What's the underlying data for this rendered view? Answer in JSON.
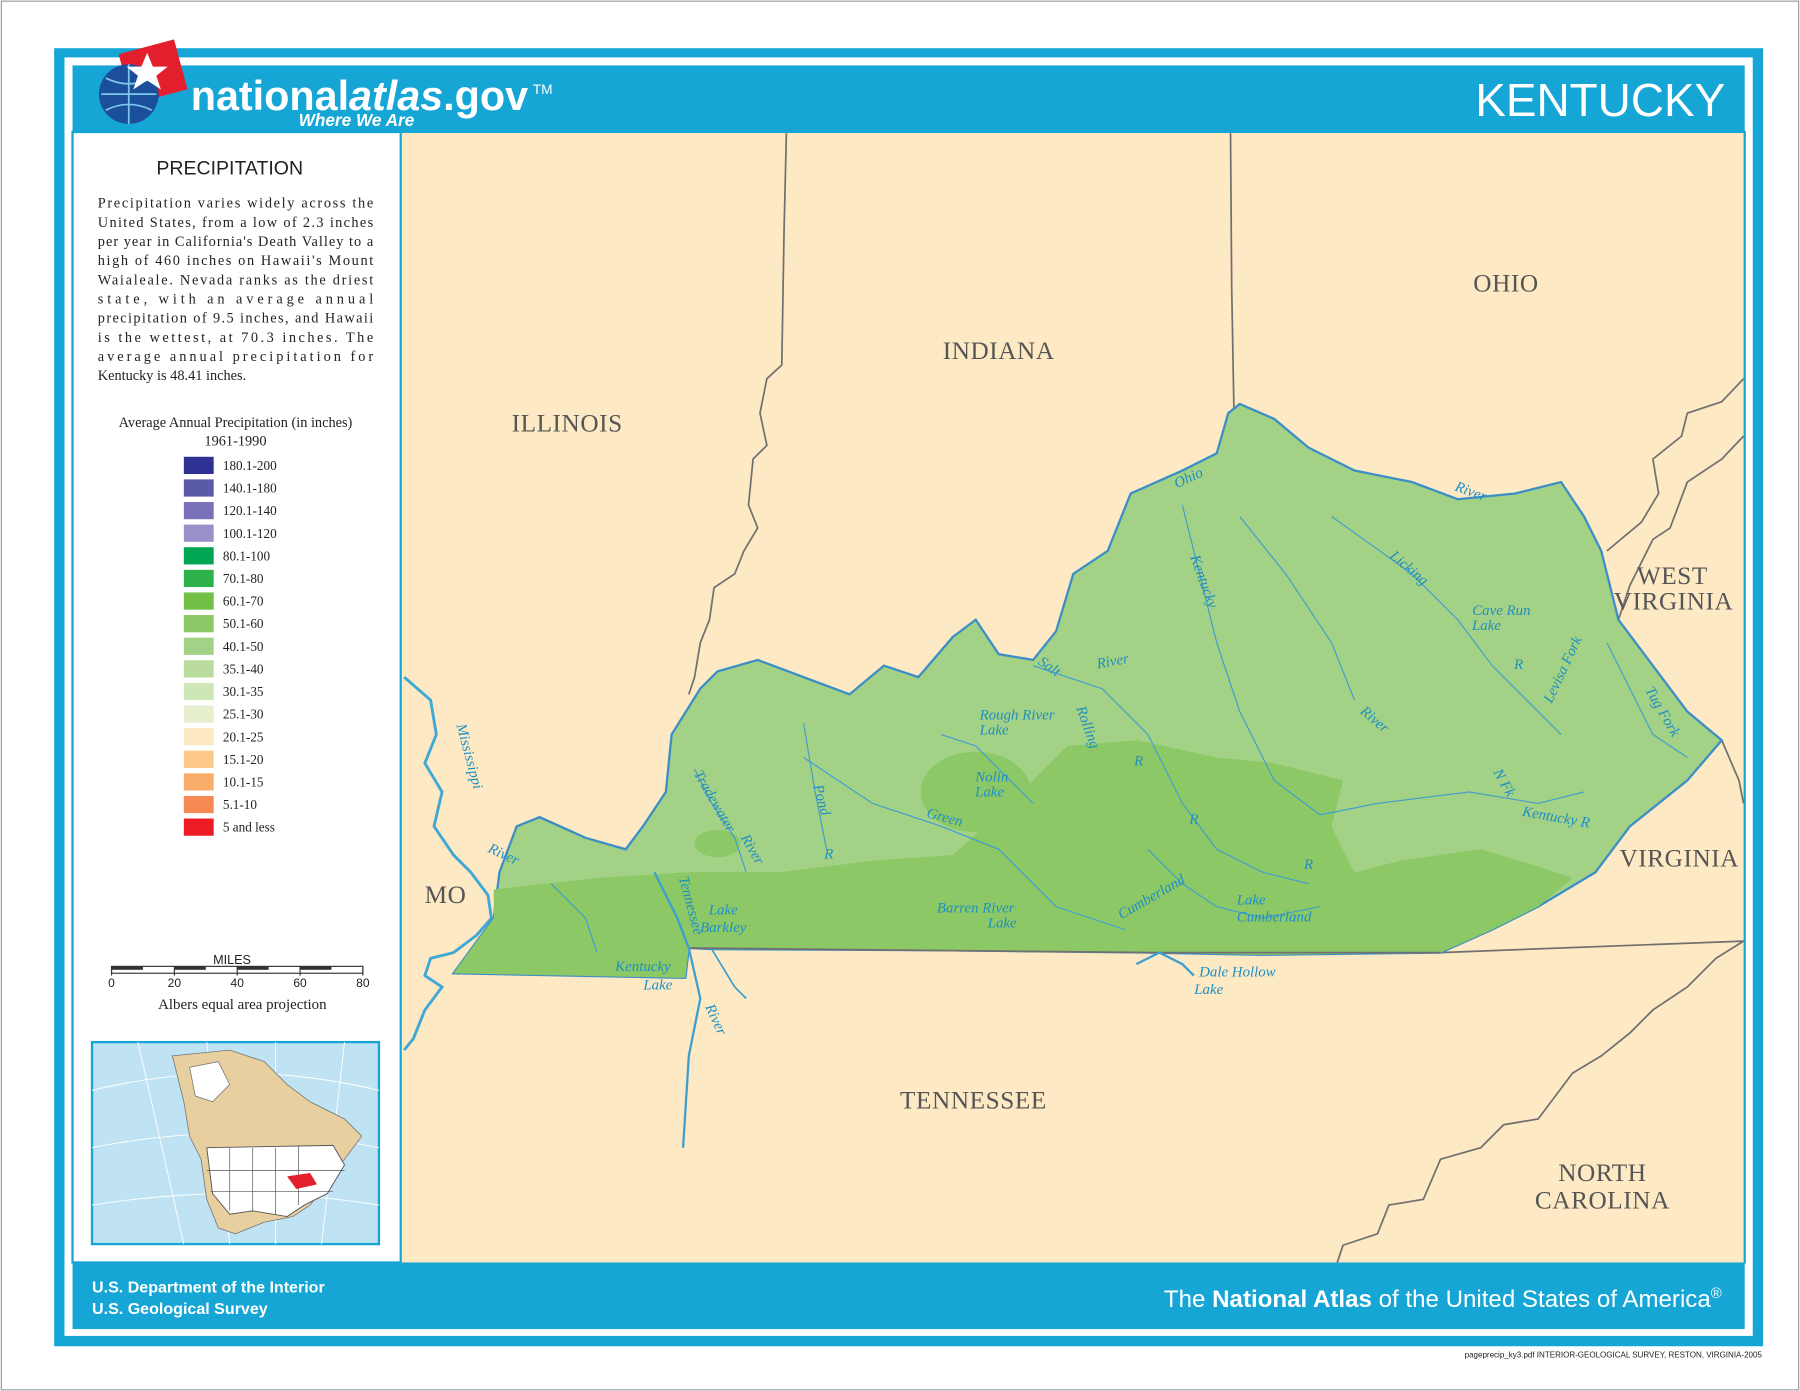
{
  "header": {
    "logo": {
      "part1": "national",
      "part2": "atlas",
      "part3": ".gov",
      "trademark": "TM",
      "tagline": "Where We Are"
    },
    "title": "KENTUCKY"
  },
  "panel": {
    "heading": "PRECIPITATION",
    "paragraph_lines": [
      "Precipitation varies widely across the",
      "United States, from a low of 2.3 inches",
      "per year in California's Death Valley to a",
      "high of 460 inches on Hawaii's Mount",
      "Waialeale. Nevada ranks as the driest",
      "state, with an average annual",
      "precipitation of 9.5 inches, and Hawaii",
      "is the wettest, at 70.3 inches. The",
      "average annual precipitation for",
      "Kentucky is 48.41 inches."
    ],
    "legend": {
      "title": "Average Annual Precipitation (in inches)",
      "period": "1961-1990",
      "items": [
        {
          "label": "180.1-200",
          "color": "#2e3192"
        },
        {
          "label": "140.1-180",
          "color": "#5b5aa8"
        },
        {
          "label": "120.1-140",
          "color": "#7a72b8"
        },
        {
          "label": "100.1-120",
          "color": "#9a90c9"
        },
        {
          "label": "80.1-100",
          "color": "#00a651"
        },
        {
          "label": "70.1-80",
          "color": "#2eb04a"
        },
        {
          "label": "60.1-70",
          "color": "#71bf44"
        },
        {
          "label": "50.1-60",
          "color": "#8cc866"
        },
        {
          "label": "40.1-50",
          "color": "#a3d185"
        },
        {
          "label": "35.1-40",
          "color": "#b9dc9e"
        },
        {
          "label": "30.1-35",
          "color": "#cfe6b6"
        },
        {
          "label": "25.1-30",
          "color": "#e6f0cf"
        },
        {
          "label": "20.1-25",
          "color": "#fde9c4"
        },
        {
          "label": "15.1-20",
          "color": "#fdc98a"
        },
        {
          "label": "10.1-15",
          "color": "#f9ad6a"
        },
        {
          "label": "5.1-10",
          "color": "#f68a55"
        },
        {
          "label": "5 and less",
          "color": "#ed1c24"
        }
      ]
    },
    "scale": {
      "unit": "MILES",
      "ticks": [
        0,
        20,
        40,
        60,
        80
      ]
    },
    "projection": "Albers equal area projection"
  },
  "map": {
    "state_labels": [
      "ILLINOIS",
      "INDIANA",
      "OHIO",
      "WEST",
      "VIRGINIA",
      "VIRGINIA",
      "MO",
      "TENNESSEE",
      "NORTH",
      "CAROLINA"
    ],
    "water_labels": [
      "Ohio",
      "River",
      "Mississippi",
      "River",
      "Kentucky",
      "Licking",
      "Cave Run",
      "Lake",
      "R",
      "Levisa Fork",
      "Tug Fork",
      "Salt",
      "River",
      "Rough River",
      "Lake",
      "Rolling",
      "R",
      "Nolin",
      "Lake",
      "Green",
      "R",
      "Pond",
      "R",
      "Tradewater",
      "River",
      "River",
      "N Fk",
      "Kentucky R",
      "Tennessee",
      "Lake",
      "Barkley",
      "Kentucky",
      "Lake",
      "River",
      "Barren River",
      "Lake",
      "Cumberland",
      "Lake",
      "Cumberland",
      "R",
      "Dale Hollow",
      "Lake"
    ]
  },
  "footer": {
    "agency1": "U.S. Department of the Interior",
    "agency2": "U.S. Geological Survey",
    "brand_pre": "The ",
    "brand_bold": "National Atlas",
    "brand_post": " of the United States of America",
    "brand_mark": "®",
    "credit": "pageprecip_ky3.pdf  INTERIOR-GEOLOGICAL SURVEY, RESTON, VIRGINIA-2005"
  }
}
